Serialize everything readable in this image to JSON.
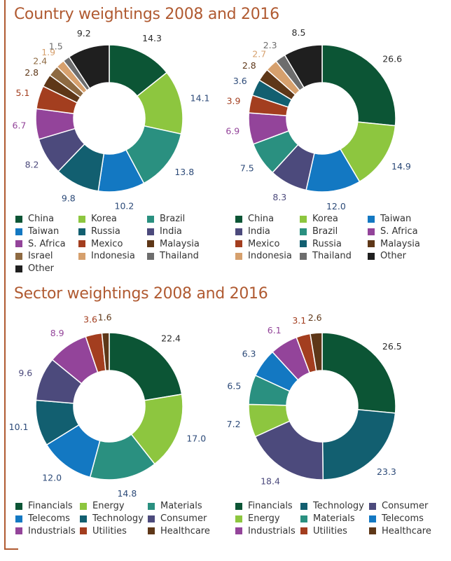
{
  "colors": {
    "title": "#b05a31",
    "darkgreen": "#0c5535",
    "lightgreen": "#8dc63f",
    "teal": "#2a9080",
    "blue": "#1378c2",
    "darkteal": "#125f70",
    "indigo": "#4c4a7c",
    "purple": "#93449a",
    "rust": "#a33e1f",
    "darkbrown": "#5e3718",
    "israel": "#8e6a42",
    "tan": "#d6a06d",
    "gray": "#6d6d6d",
    "black": "#1f1f1f",
    "label": "#2c4a78"
  },
  "sections": {
    "country_title": "Country weightings 2008 and 2016",
    "sector_title": "Sector weightings 2008 and 2016"
  },
  "chart_data": [
    {
      "type": "pie",
      "title": "Country weightings 2008 and 2016",
      "slices": [
        {
          "name": "China",
          "value": 14.3,
          "color": "#0c5535"
        },
        {
          "name": "Korea",
          "value": 14.1,
          "color": "#8dc63f"
        },
        {
          "name": "Brazil",
          "value": 13.8,
          "color": "#2a9080"
        },
        {
          "name": "Taiwan",
          "value": 10.2,
          "color": "#1378c2"
        },
        {
          "name": "Russia",
          "value": 9.8,
          "color": "#125f70"
        },
        {
          "name": "India",
          "value": 8.2,
          "color": "#4c4a7c"
        },
        {
          "name": "S. Africa",
          "value": 6.7,
          "color": "#93449a"
        },
        {
          "name": "Mexico",
          "value": 5.1,
          "color": "#a33e1f"
        },
        {
          "name": "Malaysia",
          "value": 2.8,
          "color": "#5e3718"
        },
        {
          "name": "Israel",
          "value": 2.4,
          "color": "#8e6a42"
        },
        {
          "name": "Indonesia",
          "value": 1.9,
          "color": "#d6a06d"
        },
        {
          "name": "Thailand",
          "value": 1.5,
          "color": "#6d6d6d"
        },
        {
          "name": "Other",
          "value": 9.2,
          "color": "#1f1f1f"
        }
      ],
      "legend": [
        "China",
        "Korea",
        "Brazil",
        "Taiwan",
        "Russia",
        "India",
        "S. Africa",
        "Mexico",
        "Malaysia",
        "Israel",
        "Indonesia",
        "Thailand",
        "Other"
      ]
    },
    {
      "type": "pie",
      "title": "",
      "slices": [
        {
          "name": "China",
          "value": 26.6,
          "color": "#0c5535"
        },
        {
          "name": "Korea",
          "value": 14.9,
          "color": "#8dc63f"
        },
        {
          "name": "Taiwan",
          "value": 12.0,
          "color": "#1378c2"
        },
        {
          "name": "India",
          "value": 8.3,
          "color": "#4c4a7c"
        },
        {
          "name": "Brazil",
          "value": 7.5,
          "color": "#2a9080"
        },
        {
          "name": "S. Africa",
          "value": 6.9,
          "color": "#93449a"
        },
        {
          "name": "Mexico",
          "value": 3.9,
          "color": "#a33e1f"
        },
        {
          "name": "Russia",
          "value": 3.6,
          "color": "#125f70"
        },
        {
          "name": "Malaysia",
          "value": 2.8,
          "color": "#5e3718"
        },
        {
          "name": "Indonesia",
          "value": 2.7,
          "color": "#d6a06d"
        },
        {
          "name": "Thailand",
          "value": 2.3,
          "color": "#6d6d6d"
        },
        {
          "name": "Other",
          "value": 8.5,
          "color": "#1f1f1f"
        }
      ],
      "legend": [
        "China",
        "Korea",
        "Taiwan",
        "India",
        "Brazil",
        "S. Africa",
        "Mexico",
        "Russia",
        "Malaysia",
        "Indonesia",
        "Thailand",
        "Other"
      ]
    },
    {
      "type": "pie",
      "title": "Sector weightings 2008 and 2016",
      "slices": [
        {
          "name": "Financials",
          "value": 22.4,
          "color": "#0c5535"
        },
        {
          "name": "Energy",
          "value": 17.0,
          "color": "#8dc63f"
        },
        {
          "name": "Materials",
          "value": 14.8,
          "color": "#2a9080"
        },
        {
          "name": "Telecoms",
          "value": 12.0,
          "color": "#1378c2"
        },
        {
          "name": "Technology",
          "value": 10.1,
          "color": "#125f70"
        },
        {
          "name": "Consumer",
          "value": 9.6,
          "color": "#4c4a7c"
        },
        {
          "name": "Industrials",
          "value": 8.9,
          "color": "#93449a"
        },
        {
          "name": "Utilities",
          "value": 3.6,
          "color": "#a33e1f"
        },
        {
          "name": "Healthcare",
          "value": 1.6,
          "color": "#5e3718"
        }
      ],
      "legend": [
        "Financials",
        "Energy",
        "Materials",
        "Telecoms",
        "Technology",
        "Consumer",
        "Industrials",
        "Utilities",
        "Healthcare"
      ]
    },
    {
      "type": "pie",
      "title": "",
      "slices": [
        {
          "name": "Financials",
          "value": 26.5,
          "color": "#0c5535"
        },
        {
          "name": "Technology",
          "value": 23.3,
          "color": "#125f70"
        },
        {
          "name": "Consumer",
          "value": 18.4,
          "color": "#4c4a7c"
        },
        {
          "name": "Energy",
          "value": 7.2,
          "color": "#8dc63f"
        },
        {
          "name": "Materials",
          "value": 6.5,
          "color": "#2a9080"
        },
        {
          "name": "Telecoms",
          "value": 6.3,
          "color": "#1378c2"
        },
        {
          "name": "Industrials",
          "value": 6.1,
          "color": "#93449a"
        },
        {
          "name": "Utilities",
          "value": 3.1,
          "color": "#a33e1f"
        },
        {
          "name": "Healthcare",
          "value": 2.6,
          "color": "#5e3718"
        }
      ],
      "legend": [
        "Financials",
        "Technology",
        "Consumer",
        "Energy",
        "Materials",
        "Telecoms",
        "Industrials",
        "Utilities",
        "Healthcare"
      ]
    }
  ]
}
